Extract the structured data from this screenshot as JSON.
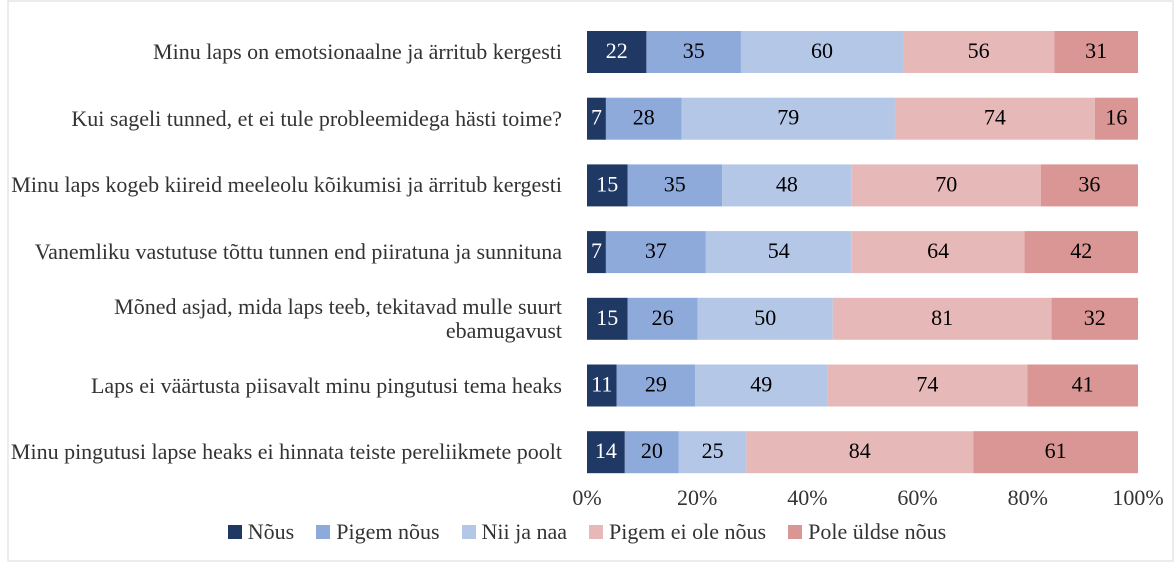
{
  "chart_data": {
    "type": "bar",
    "orientation": "horizontal",
    "percent_stacked": true,
    "categories": [
      "Minu laps on emotsionaalne ja ärritub kergesti",
      "Kui sageli tunned, et ei tule probleemidega hästi toime?",
      "Minu laps kogeb kiireid meeleolu kõikumisi ja ärritub kergesti",
      "Vanemliku vastutuse tõttu tunnen end piiratuna ja sunnituna",
      "Mõned asjad, mida laps teeb, tekitavad mulle suurt ebamugavust",
      "Laps ei väärtusta piisavalt minu pingutusi tema heaks",
      "Minu pingutusi lapse heaks ei hinnata teiste pereliikmete poolt"
    ],
    "series": [
      {
        "name": "Nõus",
        "color": "#1f3864",
        "label_color": "#ffffff",
        "values": [
          22,
          7,
          15,
          7,
          15,
          11,
          14
        ]
      },
      {
        "name": "Pigem nõus",
        "color": "#8eaadb",
        "label_color": "#000000",
        "values": [
          35,
          28,
          35,
          37,
          26,
          29,
          20
        ]
      },
      {
        "name": "Nii ja naa",
        "color": "#b4c7e7",
        "label_color": "#000000",
        "values": [
          60,
          79,
          48,
          54,
          50,
          49,
          25
        ]
      },
      {
        "name": "Pigem ei ole nõus",
        "color": "#e6b9b8",
        "label_color": "#000000",
        "values": [
          56,
          74,
          70,
          64,
          81,
          74,
          84
        ]
      },
      {
        "name": "Pole üldse nõus",
        "color": "#d99694",
        "label_color": "#000000",
        "values": [
          31,
          16,
          36,
          42,
          32,
          41,
          61
        ]
      }
    ],
    "xlim": [
      0,
      100
    ],
    "xticks": [
      {
        "value": 0,
        "label": "0%"
      },
      {
        "value": 20,
        "label": "20%"
      },
      {
        "value": 40,
        "label": "40%"
      },
      {
        "value": 60,
        "label": "60%"
      },
      {
        "value": 80,
        "label": "80%"
      },
      {
        "value": 100,
        "label": "100%"
      }
    ],
    "legend": "bottom"
  }
}
